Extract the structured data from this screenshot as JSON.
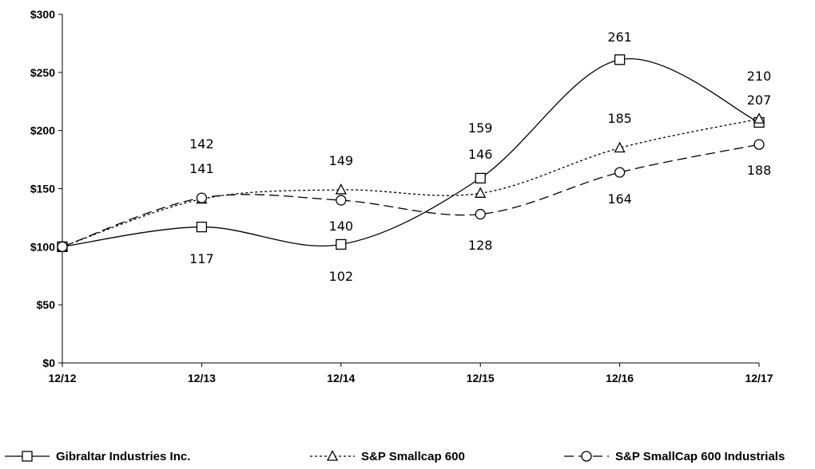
{
  "chart_data": {
    "type": "line",
    "title": "",
    "xlabel": "",
    "ylabel": "",
    "categories": [
      "12/12",
      "12/13",
      "12/14",
      "12/15",
      "12/16",
      "12/17"
    ],
    "ylim": [
      0,
      300
    ],
    "yticks": [
      "$0",
      "$50",
      "$100",
      "$150",
      "$200",
      "$250",
      "$300"
    ],
    "grid": false,
    "legend_position": "bottom",
    "series": [
      {
        "name": "Gibraltar Industries Inc.",
        "marker": "square",
        "line": "solid",
        "values": [
          100,
          117,
          102,
          159,
          261,
          207
        ],
        "labels": [
          "",
          "117",
          "102",
          "159",
          "261",
          "207"
        ]
      },
      {
        "name": "S&P Smallcap 600",
        "marker": "triangle",
        "line": "dotted",
        "values": [
          100,
          141,
          149,
          146,
          185,
          210
        ],
        "labels": [
          "",
          "141",
          "149",
          "146",
          "185",
          "210"
        ]
      },
      {
        "name": "S&P SmallCap 600 Industrials",
        "marker": "circle",
        "line": "dashed",
        "values": [
          100,
          142,
          140,
          128,
          164,
          188
        ],
        "labels": [
          "",
          "142",
          "140",
          "128",
          "164",
          "188"
        ]
      }
    ]
  }
}
